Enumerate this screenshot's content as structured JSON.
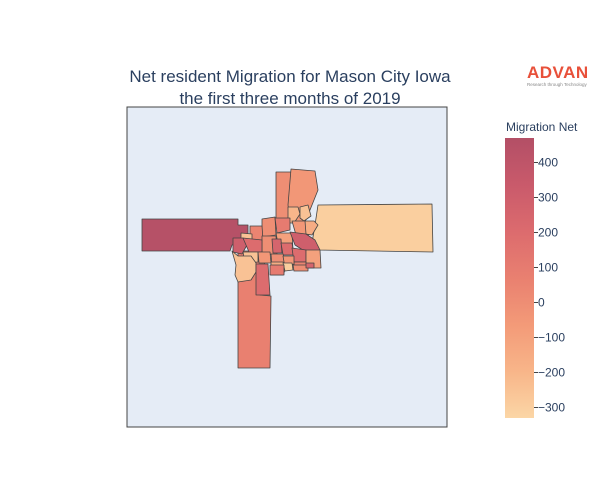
{
  "title_line1": "Net resident Migration for Mason City Iowa",
  "title_line2": "the first three months of 2019",
  "brand": {
    "name": "ADVAN",
    "tagline": "Research through Technology",
    "color": "#e8503a"
  },
  "colorbar": {
    "title": "Migration Net",
    "min": -330,
    "max": 470,
    "ticks": [
      400,
      300,
      200,
      100,
      0,
      -100,
      -200,
      -300
    ],
    "tick_labels": [
      "400",
      "300",
      "200",
      "100",
      "0",
      "−100",
      "−200",
      "−300"
    ],
    "colors": [
      "#fbd6a6",
      "#f8b589",
      "#f39a78",
      "#e98070",
      "#dc6b6e",
      "#c95a6b",
      "#b34f66"
    ]
  },
  "map": {
    "background": "#e5ecf6",
    "border_color": "#444444"
  },
  "chart_data": {
    "type": "choropleth",
    "title": "Net resident Migration for Mason City Iowa the first three months of 2019",
    "legend_title": "Migration Net",
    "value_range": [
      -330,
      470
    ],
    "regions": [
      {
        "id": "r1",
        "value": -300
      },
      {
        "id": "r2",
        "value": 450
      },
      {
        "id": "r3",
        "value": 70
      },
      {
        "id": "r4",
        "value": 0
      },
      {
        "id": "r5",
        "value": -50
      },
      {
        "id": "r6",
        "value": -200
      },
      {
        "id": "r7",
        "value": -250
      },
      {
        "id": "r8",
        "value": 0
      },
      {
        "id": "r9",
        "value": 50
      },
      {
        "id": "r10",
        "value": -250
      },
      {
        "id": "r11",
        "value": 100
      },
      {
        "id": "r12",
        "value": -100
      },
      {
        "id": "r13",
        "value": 0
      },
      {
        "id": "r14",
        "value": -50
      },
      {
        "id": "r15",
        "value": -150
      },
      {
        "id": "r16",
        "value": 300
      },
      {
        "id": "r17",
        "value": 300
      },
      {
        "id": "r18",
        "value": 200
      },
      {
        "id": "r19",
        "value": -250
      },
      {
        "id": "r20",
        "value": -50
      },
      {
        "id": "r21",
        "value": 250
      },
      {
        "id": "r22",
        "value": 200
      },
      {
        "id": "r23",
        "value": 200
      },
      {
        "id": "r24",
        "value": -100
      },
      {
        "id": "r25",
        "value": 50
      },
      {
        "id": "r26",
        "value": 0
      },
      {
        "id": "r27",
        "value": -250
      },
      {
        "id": "r28",
        "value": 200
      },
      {
        "id": "r29",
        "value": -150
      },
      {
        "id": "r30",
        "value": -50
      },
      {
        "id": "r31",
        "value": -300
      },
      {
        "id": "r32",
        "value": 0
      },
      {
        "id": "r33",
        "value": 250
      },
      {
        "id": "r34",
        "value": 100
      }
    ]
  }
}
